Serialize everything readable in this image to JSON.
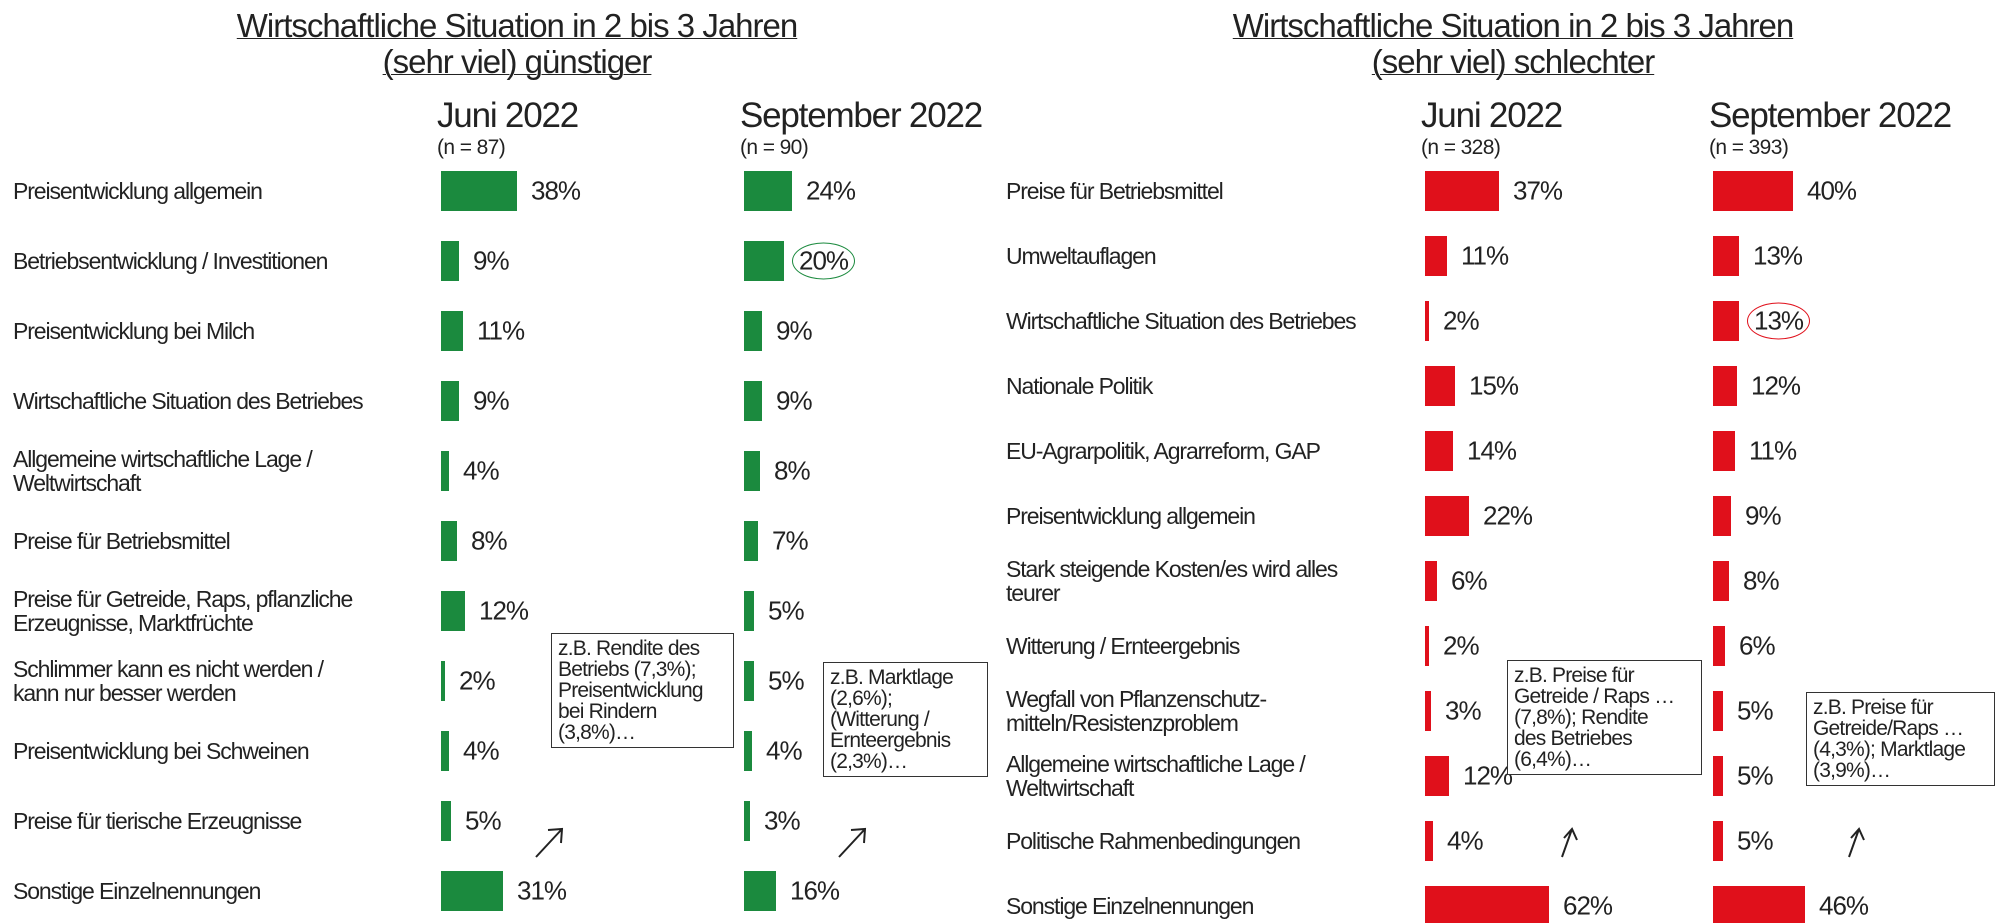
{
  "chart_data": [
    {
      "type": "bar",
      "orientation": "horizontal",
      "title": "Wirtschaftliche Situation in 2 bis 3 Jahren",
      "subtitle": "(sehr viel) günstiger",
      "categories": [
        "Preisentwicklung allgemein",
        "Betriebsentwicklung / Investitionen",
        "Preisentwicklung bei Milch",
        "Wirtschaftliche Situation des Betriebes",
        "Allgemeine wirtschaftliche Lage /\nWeltwirtschaft",
        "Preise für Betriebsmittel",
        "Preise für Getreide, Raps, pflanzliche\nErzeugnisse, Marktfrüchte",
        "Schlimmer kann es nicht werden /\nkann nur besser werden",
        "Preisentwicklung bei Schweinen",
        "Preise für tierische Erzeugnisse",
        "Sonstige Einzelnennungen"
      ],
      "series": [
        {
          "name": "Juni 2022",
          "sample": "(n = 87)",
          "color": "#1b8a3e",
          "values": [
            38,
            9,
            11,
            9,
            4,
            8,
            12,
            2,
            4,
            5,
            31
          ],
          "value_labels": [
            "38%",
            "9%",
            "11%",
            "9%",
            "4%",
            "8%",
            "12%",
            "2%",
            "4%",
            "5%",
            "31%"
          ]
        },
        {
          "name": "September 2022",
          "sample": "(n = 90)",
          "color": "#1b8a3e",
          "values": [
            24,
            20,
            9,
            9,
            8,
            7,
            5,
            5,
            4,
            3,
            16
          ],
          "value_labels": [
            "24%",
            "20%",
            "9%",
            "9%",
            "8%",
            "7%",
            "5%",
            "5%",
            "4%",
            "3%",
            "16%"
          ],
          "highlight": [
            1
          ]
        }
      ],
      "annotations": [
        "z.B. Rendite des\nBetriebs (7,3%);\nPreisentwicklung\nbei Rindern\n(3,8%)…",
        "z.B. Marktlage\n(2,6%);\n(Witterung /\nErnteergebnis\n(2,3%)…"
      ]
    },
    {
      "type": "bar",
      "orientation": "horizontal",
      "title": "Wirtschaftliche Situation in 2 bis 3 Jahren",
      "subtitle": "(sehr viel) schlechter",
      "categories": [
        "Preise für Betriebsmittel",
        "Umweltauflagen",
        "Wirtschaftliche Situation des Betriebes",
        "Nationale Politik",
        "EU-Agrarpolitik, Agrarreform, GAP",
        "Preisentwicklung allgemein",
        "Stark steigende Kosten/es wird alles\nteurer",
        "Witterung / Ernteergebnis",
        "Wegfall von Pflanzenschutz-\nmitteln/Resistenzproblem",
        "Allgemeine wirtschaftliche Lage /\nWeltwirtschaft",
        "Politische Rahmenbedingungen",
        "Sonstige Einzelnennungen"
      ],
      "series": [
        {
          "name": "Juni 2022",
          "sample": "(n = 328)",
          "color": "#e0101b",
          "values": [
            37,
            11,
            2,
            15,
            14,
            22,
            6,
            2,
            3,
            12,
            4,
            62
          ],
          "value_labels": [
            "37%",
            "11%",
            "2%",
            "15%",
            "14%",
            "22%",
            "6%",
            "2%",
            "3%",
            "12%",
            "4%",
            "62%"
          ]
        },
        {
          "name": "September 2022",
          "sample": "(n = 393)",
          "color": "#e0101b",
          "values": [
            40,
            13,
            13,
            12,
            11,
            9,
            8,
            6,
            5,
            5,
            5,
            46
          ],
          "value_labels": [
            "40%",
            "13%",
            "13%",
            "12%",
            "11%",
            "9%",
            "8%",
            "6%",
            "5%",
            "5%",
            "5%",
            "46%"
          ],
          "highlight": [
            2
          ]
        }
      ],
      "annotations": [
        "z.B. Preise für\nGetreide / Raps …\n(7,8%); Rendite\ndes Betriebes\n(6,4%)…",
        "z.B. Preise für\nGetreide/Raps …\n(4,3%); Marktlage\n(3,9%)…"
      ]
    }
  ]
}
